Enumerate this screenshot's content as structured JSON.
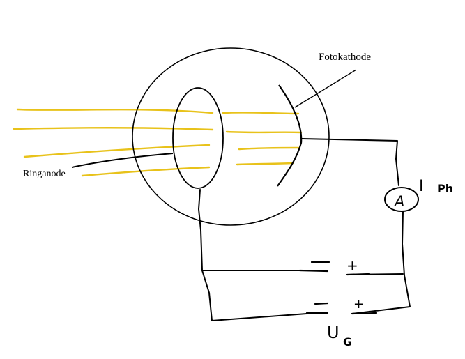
{
  "labels": {
    "cathode": "Fotokathode",
    "ring_anode": "Ringanode",
    "ammeter_symbol": "A",
    "current_main": "I",
    "current_sub": "Ph",
    "voltage_main": "U",
    "voltage_sub": "G",
    "polarity_minus": "−",
    "polarity_plus": "+"
  },
  "colors": {
    "light_rays": "#e8c21a",
    "wires": "#000000"
  }
}
